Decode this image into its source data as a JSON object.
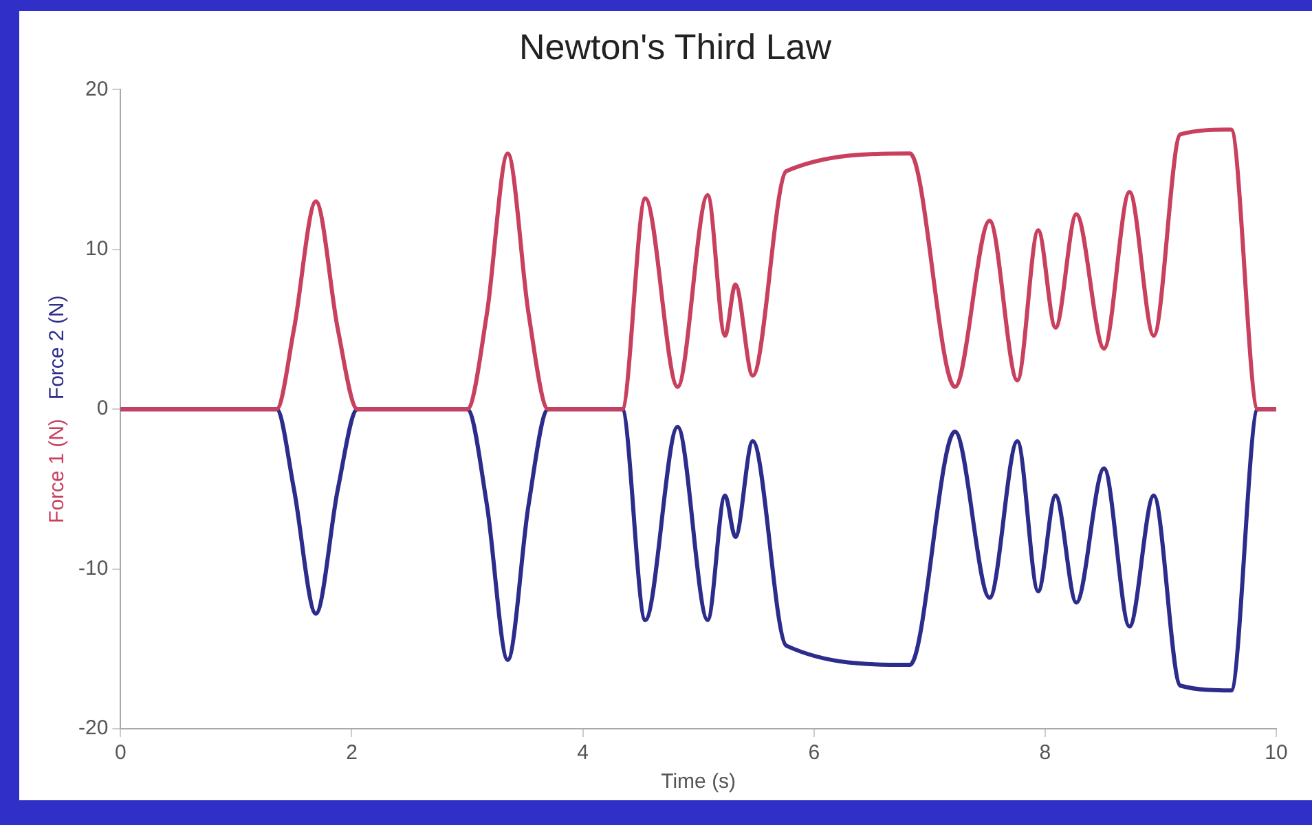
{
  "chart_data": {
    "type": "line",
    "title": "Newton's Third Law",
    "xlabel": "Time (s)",
    "legend": "left",
    "grid": false,
    "marker": "none",
    "line_style": "solid",
    "xlim": [
      0,
      10
    ],
    "xticks": [
      0,
      2,
      4,
      6,
      8,
      10
    ],
    "ylim": [
      -20,
      20
    ],
    "yticks": [
      -20,
      -10,
      0,
      10,
      20
    ],
    "series": [
      {
        "name": "Force 1 (N)",
        "color": "#c8405e",
        "x": [
          0,
          1.35,
          1.5,
          1.69,
          1.88,
          2.05,
          3.0,
          3.17,
          3.35,
          3.53,
          3.7,
          4.34,
          4.54,
          4.82,
          5.08,
          5.23,
          5.32,
          5.47,
          5.76,
          6.83,
          7.22,
          7.52,
          7.76,
          7.94,
          8.09,
          8.27,
          8.51,
          8.73,
          8.94,
          9.17,
          9.61,
          9.84,
          10
        ],
        "values": [
          0,
          0,
          5,
          13,
          5,
          0,
          0,
          6,
          16,
          6,
          0,
          0,
          13.2,
          1.4,
          13.4,
          4.6,
          7.8,
          2.1,
          14.9,
          16,
          1.4,
          11.8,
          1.8,
          11.2,
          5.1,
          12.2,
          3.8,
          13.6,
          4.6,
          17.2,
          17.5,
          0,
          0
        ]
      },
      {
        "name": "Force 2 (N)",
        "color": "#2c2c8c",
        "x": [
          0,
          1.35,
          1.5,
          1.69,
          1.88,
          2.05,
          3.0,
          3.17,
          3.35,
          3.53,
          3.7,
          4.34,
          4.54,
          4.82,
          5.08,
          5.23,
          5.32,
          5.47,
          5.76,
          6.83,
          7.22,
          7.52,
          7.76,
          7.94,
          8.09,
          8.27,
          8.51,
          8.73,
          8.94,
          9.17,
          9.61,
          9.84,
          10
        ],
        "values": [
          0,
          0,
          -5,
          -12.8,
          -5,
          0,
          0,
          -6,
          -15.7,
          -6,
          0,
          0,
          -13.2,
          -1.1,
          -13.2,
          -5.4,
          -8,
          -2,
          -14.8,
          -16,
          -1.4,
          -11.8,
          -2,
          -11.4,
          -5.4,
          -12.1,
          -3.7,
          -13.6,
          -5.4,
          -17.3,
          -17.6,
          0,
          0
        ]
      }
    ]
  }
}
